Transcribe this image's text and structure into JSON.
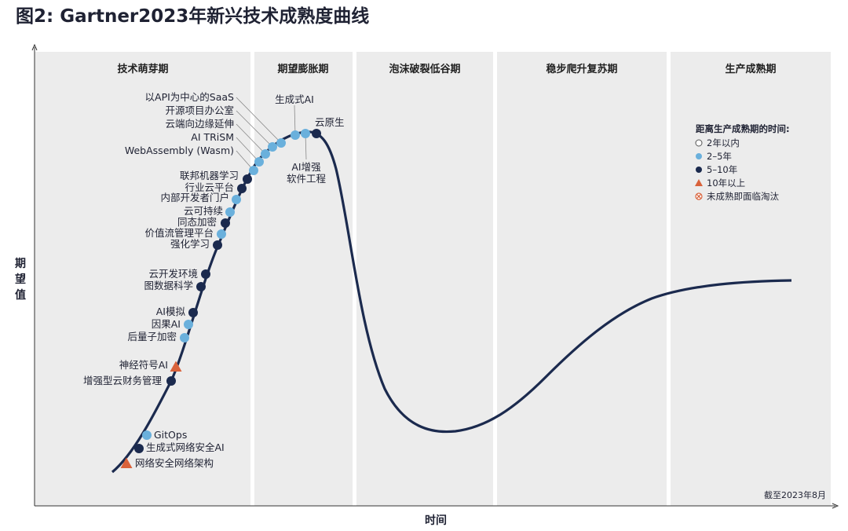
{
  "title": "图2: Gartner2023年新兴技术成熟度曲线",
  "chart_data": {
    "type": "hype-cycle",
    "phases": [
      "技术萌芽期",
      "期望膨胀期",
      "泡沫破裂低谷期",
      "稳步爬升复苏期",
      "生产成熟期"
    ],
    "xlabel": "时间",
    "ylabel": "期望值",
    "note": "截至2023年8月",
    "legend": {
      "title": "距离生产成熟期的时间:",
      "items": [
        {
          "key": "lt2",
          "label": "2年以内",
          "marker": "circle-open",
          "color": "#ffffff"
        },
        {
          "key": "y2_5",
          "label": "2–5年",
          "marker": "circle",
          "color": "#6ab0dc"
        },
        {
          "key": "y5_10",
          "label": "5–10年",
          "marker": "circle",
          "color": "#1b2a4e"
        },
        {
          "key": "gt10",
          "label": "10年以上",
          "marker": "triangle",
          "color": "#d9623b"
        },
        {
          "key": "obsolete",
          "label": "未成熟即面临淘汰",
          "marker": "cross-circle",
          "color": "#d9623b"
        }
      ]
    },
    "technologies": [
      {
        "name": "以API为中心的SaaS",
        "category": "y2_5"
      },
      {
        "name": "开源项目办公室",
        "category": "y2_5"
      },
      {
        "name": "云端向边缘延伸",
        "category": "y2_5"
      },
      {
        "name": "AI TRiSM",
        "category": "y2_5"
      },
      {
        "name": "WebAssembly (Wasm)",
        "category": "y2_5"
      },
      {
        "name": "联邦机器学习",
        "category": "y5_10"
      },
      {
        "name": "行业云平台",
        "category": "y5_10"
      },
      {
        "name": "内部开发者门户",
        "category": "y2_5"
      },
      {
        "name": "云可持续",
        "category": "y2_5"
      },
      {
        "name": "同态加密",
        "category": "y5_10"
      },
      {
        "name": "价值流管理平台",
        "category": "y2_5"
      },
      {
        "name": "强化学习",
        "category": "y5_10"
      },
      {
        "name": "云开发环境",
        "category": "y5_10"
      },
      {
        "name": "图数据科学",
        "category": "y5_10"
      },
      {
        "name": "AI模拟",
        "category": "y5_10"
      },
      {
        "name": "因果AI",
        "category": "y2_5"
      },
      {
        "name": "后量子加密",
        "category": "y2_5"
      },
      {
        "name": "神经符号AI",
        "category": "gt10"
      },
      {
        "name": "增强型云财务管理",
        "category": "y5_10"
      },
      {
        "name": "GitOps",
        "category": "y2_5"
      },
      {
        "name": "生成式网络安全AI",
        "category": "y5_10"
      },
      {
        "name": "网络安全网络架构",
        "category": "gt10"
      },
      {
        "name": "生成式AI",
        "category": "y2_5"
      },
      {
        "name": "AI增强软件工程",
        "category": "y2_5"
      },
      {
        "name": "云原生",
        "category": "y5_10"
      }
    ]
  }
}
